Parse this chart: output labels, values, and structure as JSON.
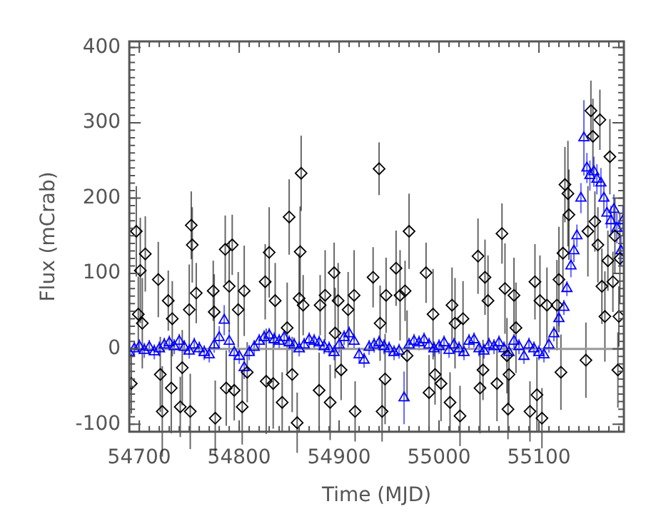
{
  "chart_data": {
    "type": "scatter",
    "xlabel": "Time (MJD)",
    "ylabel": "Flux (mCrab)",
    "xlim": [
      54690,
      55185
    ],
    "ylim": [
      -110,
      408
    ],
    "xticks": [
      54700,
      54800,
      54900,
      55000,
      55100
    ],
    "yticks": [
      -100,
      0,
      100,
      200,
      300,
      400
    ],
    "grid": false,
    "legend": false,
    "ref_lines": [
      {
        "axis": "y",
        "value": 0,
        "color": "#999999"
      }
    ],
    "series": [
      {
        "color": "#000000",
        "marker": "diamond",
        "x": [
          54697,
          54701,
          54706,
          54692,
          54699,
          54703,
          54719,
          54723,
          54721,
          54729,
          54733,
          54732,
          54741,
          54743,
          54752,
          54753,
          54751,
          54757,
          54750,
          54776,
          54774,
          54775,
          54786,
          54793,
          54790,
          54787,
          54795,
          54803,
          54805,
          54808,
          54799,
          54826,
          54830,
          54827,
          54834,
          54836,
          54843,
          54848,
          54850,
          54853,
          54858,
          54861,
          54862,
          54860,
          54864,
          54880,
          54881,
          54886,
          54891,
          54895,
          54896,
          54899,
          54902,
          54909,
          54915,
          54916,
          54934,
          54940,
          54941,
          54943,
          54946,
          54947,
          54957,
          54961,
          54966,
          54970,
          54968,
          54987,
          54990,
          54994,
          54996,
          55002,
          55011,
          55013,
          55016,
          55021,
          55024,
          55039,
          55041,
          55044,
          55046,
          55049,
          55063,
          55058,
          55066,
          55068,
          55070,
          55069,
          55075,
          55077,
          55091,
          55096,
          55101,
          55098,
          55103,
          55108,
          55118,
          55120,
          55122,
          55124,
          55126,
          55129,
          55130,
          55147,
          55149,
          55152,
          55154,
          55156,
          55159,
          55161,
          55163,
          55166,
          55169,
          55171,
          55174,
          55179,
          55180,
          55181,
          55176
        ],
        "values": [
          156,
          104,
          126,
          -46,
          46,
          34,
          92,
          -83,
          -34,
          64,
          40,
          -52,
          -77,
          -25,
          164,
          138,
          -83,
          74,
          52,
          -92,
          77,
          49,
          132,
          138,
          83,
          -52,
          -55,
          -77,
          77,
          -31,
          52,
          89,
          128,
          -43,
          -46,
          64,
          -71,
          28,
          175,
          -34,
          -98,
          129,
          233,
          67,
          58,
          -55,
          58,
          71,
          -71,
          101,
          21,
          64,
          -28,
          52,
          71,
          -83,
          95,
          239,
          34,
          -83,
          -40,
          71,
          107,
          71,
          77,
          156,
          -9,
          101,
          -58,
          46,
          -34,
          -46,
          -71,
          58,
          34,
          -89,
          40,
          123,
          -52,
          -28,
          95,
          64,
          153,
          -46,
          80,
          -9,
          -34,
          -80,
          71,
          28,
          -83,
          89,
          64,
          -61,
          -92,
          58,
          58,
          92,
          -31,
          127,
          218,
          206,
          178,
          -15,
          156,
          316,
          282,
          169,
          138,
          304,
          83,
          43,
          117,
          255,
          89,
          -28,
          43,
          120,
          150
        ],
        "errors": [
          60,
          70,
          50,
          40,
          50,
          60,
          50,
          60,
          50,
          40,
          50,
          60,
          40,
          50,
          45,
          50,
          50,
          40,
          60,
          50,
          40,
          50,
          45,
          40,
          60,
          50,
          40,
          50,
          60,
          40,
          50,
          50,
          60,
          70,
          60,
          50,
          40,
          60,
          50,
          50,
          40,
          60,
          50,
          60,
          40,
          50,
          40,
          60,
          50,
          40,
          60,
          50,
          40,
          50,
          60,
          40,
          40,
          35,
          50,
          40,
          60,
          50,
          50,
          60,
          40,
          50,
          60,
          40,
          50,
          60,
          40,
          50,
          40,
          50,
          60,
          40,
          50,
          50,
          60,
          40,
          50,
          60,
          40,
          50,
          60,
          50,
          40,
          40,
          50,
          60,
          40,
          50,
          60,
          50,
          40,
          50,
          60,
          70,
          50,
          50,
          50,
          70,
          60,
          50,
          60,
          40,
          50,
          40,
          50,
          40,
          50,
          60,
          40,
          50,
          40,
          50,
          40,
          60,
          50
        ]
      },
      {
        "color": "#0000ff",
        "marker": "triangle",
        "x": [
          54690,
          54695,
          54700,
          54705,
          54710,
          54715,
          54720,
          54725,
          54730,
          54735,
          54740,
          54745,
          54750,
          54755,
          54760,
          54765,
          54770,
          54775,
          54780,
          54785,
          54790,
          54795,
          54800,
          54805,
          54810,
          54815,
          54820,
          54825,
          54830,
          54835,
          54840,
          54845,
          54850,
          54855,
          54860,
          54865,
          54870,
          54875,
          54880,
          54885,
          54890,
          54895,
          54900,
          54905,
          54910,
          54915,
          54920,
          54925,
          54930,
          54935,
          54940,
          54945,
          54950,
          54955,
          54960,
          54965,
          54970,
          54975,
          54980,
          54985,
          54990,
          54995,
          55000,
          55005,
          55010,
          55015,
          55020,
          55025,
          55030,
          55035,
          55040,
          55045,
          55050,
          55055,
          55060,
          55065,
          55070,
          55075,
          55080,
          55085,
          55090,
          55095,
          55100,
          55105,
          55110,
          55115,
          55120,
          55125,
          55128,
          55132,
          55135,
          55138,
          55142,
          55145,
          55148,
          55151,
          55155,
          55158,
          55162,
          55165,
          55168,
          55172,
          55175,
          55178,
          55182,
          55184
        ],
        "values": [
          -5,
          0,
          3,
          -2,
          2,
          -4,
          0,
          5,
          8,
          3,
          10,
          2,
          -3,
          5,
          0,
          -5,
          -8,
          5,
          15,
          38,
          10,
          -5,
          -10,
          -25,
          -5,
          2,
          10,
          15,
          18,
          12,
          10,
          15,
          8,
          5,
          0,
          5,
          12,
          10,
          8,
          3,
          0,
          -5,
          5,
          15,
          20,
          10,
          -8,
          -15,
          2,
          5,
          8,
          3,
          0,
          -5,
          -3,
          -65,
          5,
          10,
          8,
          12,
          5,
          0,
          3,
          8,
          -2,
          5,
          0,
          -5,
          10,
          12,
          0,
          -3,
          5,
          3,
          8,
          0,
          -5,
          10,
          3,
          -10,
          5,
          0,
          -5,
          -8,
          5,
          20,
          40,
          55,
          80,
          110,
          130,
          150,
          200,
          280,
          240,
          230,
          235,
          225,
          220,
          200,
          180,
          170,
          185,
          160,
          130,
          170
        ],
        "errors": [
          10,
          10,
          10,
          10,
          10,
          10,
          10,
          10,
          10,
          10,
          10,
          10,
          10,
          10,
          10,
          10,
          10,
          10,
          15,
          20,
          15,
          10,
          10,
          15,
          10,
          10,
          10,
          10,
          10,
          10,
          10,
          10,
          10,
          10,
          10,
          10,
          10,
          10,
          10,
          10,
          10,
          10,
          10,
          10,
          10,
          10,
          10,
          10,
          10,
          10,
          10,
          10,
          10,
          10,
          10,
          35,
          10,
          10,
          10,
          10,
          10,
          10,
          10,
          10,
          10,
          10,
          10,
          10,
          10,
          10,
          10,
          10,
          10,
          10,
          10,
          10,
          10,
          10,
          10,
          10,
          10,
          10,
          10,
          10,
          10,
          10,
          10,
          10,
          10,
          15,
          15,
          15,
          20,
          50,
          20,
          20,
          20,
          20,
          20,
          20,
          20,
          20,
          20,
          20,
          20,
          20
        ]
      }
    ]
  }
}
